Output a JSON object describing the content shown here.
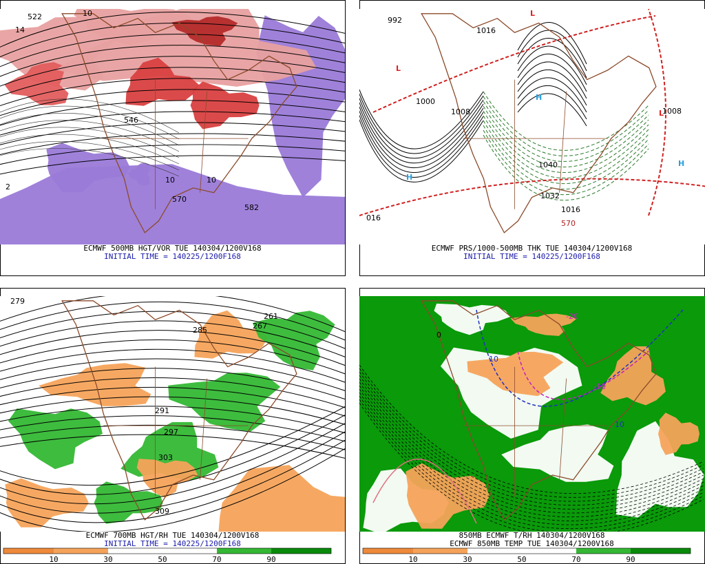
{
  "panels": [
    {
      "caption": "ECMWF 500MB HGT/VOR TUE 140304/1200V168",
      "subcaption": "INITIAL TIME = 140225/1200F168",
      "labels": [
        "522",
        "14",
        "10",
        "546",
        "570",
        "582",
        "10",
        "2",
        "10"
      ]
    },
    {
      "caption": "ECMWF PRS/1000-500MB THK TUE 140304/1200V168",
      "subcaption": "INITIAL TIME = 140225/1200F168",
      "labels": [
        "992",
        "L",
        "H",
        "L",
        "H",
        "H",
        "1000",
        "1008",
        "1040",
        "1032",
        "1016",
        "570",
        "016",
        "L",
        "1008",
        "1016"
      ]
    },
    {
      "caption": "ECMWF 700MB HGT/RH TUE 140304/1200V168",
      "subcaption": "INITIAL TIME = 140225/1200F168",
      "labels": [
        "279",
        "291",
        "297",
        "303",
        "309",
        "267",
        "261",
        "285"
      ],
      "colorbar": [
        10,
        30,
        50,
        70,
        90
      ]
    },
    {
      "caption": "850MB ECMWF T/RH 140304/1200V168",
      "subcaption": "ECMWF 850MB TEMP TUE 140304/1200V168",
      "labels": [
        "10",
        "10",
        "-10",
        "0",
        "-20"
      ],
      "colorbar": [
        10,
        30,
        50,
        70,
        90
      ]
    }
  ]
}
